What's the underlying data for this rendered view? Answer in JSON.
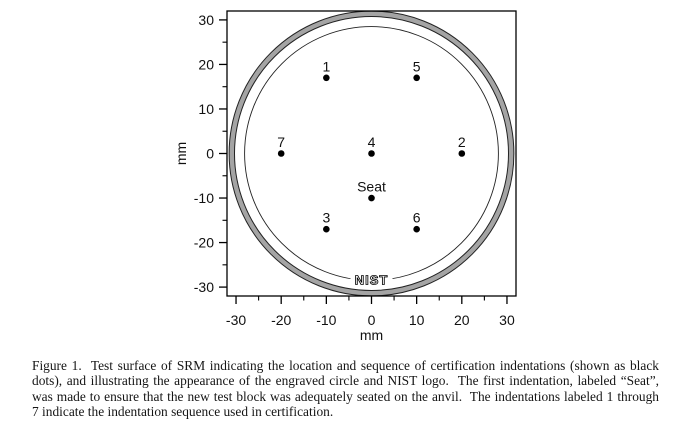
{
  "chart_data": {
    "type": "scatter",
    "title": "",
    "xlabel": "mm",
    "ylabel": "mm",
    "xlim": [
      -32,
      32
    ],
    "ylim": [
      -32,
      32
    ],
    "ticks_major": [
      -30,
      -20,
      -10,
      0,
      10,
      20,
      30
    ],
    "ticks_minor": [
      -25,
      -15,
      -5,
      5,
      15,
      25
    ],
    "points": [
      {
        "label": "1",
        "x": -10,
        "y": 17
      },
      {
        "label": "5",
        "x": 10,
        "y": 17
      },
      {
        "label": "7",
        "x": -20,
        "y": 0
      },
      {
        "label": "4",
        "x": 0,
        "y": 0
      },
      {
        "label": "2",
        "x": 20,
        "y": 0
      },
      {
        "label": "Seat",
        "x": 0,
        "y": -10
      },
      {
        "label": "3",
        "x": -10,
        "y": -17
      },
      {
        "label": "6",
        "x": 10,
        "y": -17
      }
    ],
    "circles": {
      "outer_edge_mm": 31.75,
      "band_inner_edge_mm": 30.55,
      "inner_circle_mm": 28.3,
      "ring_color": "#a4a4a4"
    },
    "logo_text": "NIST"
  },
  "caption": {
    "lines": [
      "Figure 1.  Test surface of SRM indicating the location and sequence of certification indentations (shown as black",
      "dots), and illustrating the appearance of the engraved circle and NIST logo.  The first indentation, labeled “Seat”,",
      "was made to ensure that the new test block was adequately seated on the anvil.  The indentations labeled 1 through",
      "7 indicate the indentation sequence used in certification."
    ]
  }
}
